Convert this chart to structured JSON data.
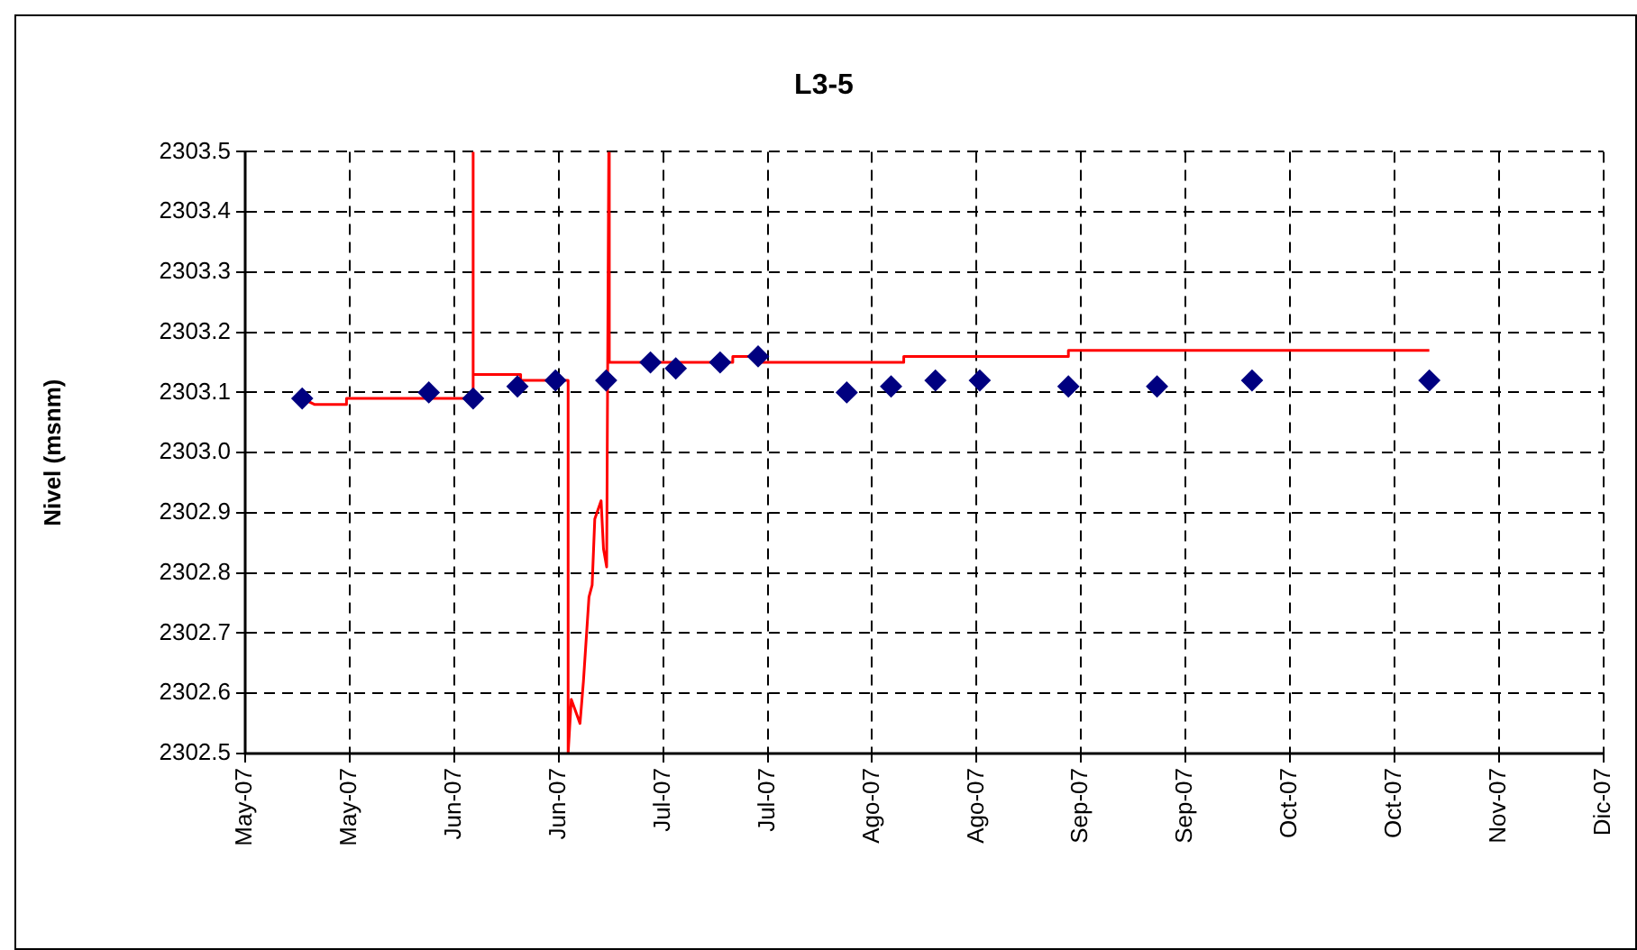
{
  "chart_data": {
    "type": "line",
    "title": "L3-5",
    "ylabel": "Nivel (msnm)",
    "xlim": [
      "2007-05-03",
      "2007-12-03T12:00"
    ],
    "xticks": [
      {
        "value": "2007-05-03",
        "label": "May-07"
      },
      {
        "value": "2007-05-19T12:00",
        "label": "May-07"
      },
      {
        "value": "2007-06-05",
        "label": "Jun-07"
      },
      {
        "value": "2007-06-21T12:00",
        "label": "Jun-07"
      },
      {
        "value": "2007-07-08",
        "label": "Jul-07"
      },
      {
        "value": "2007-07-24T12:00",
        "label": "Jul-07"
      },
      {
        "value": "2007-08-10",
        "label": "Ago-07"
      },
      {
        "value": "2007-08-26T12:00",
        "label": "Ago-07"
      },
      {
        "value": "2007-09-12",
        "label": "Sep-07"
      },
      {
        "value": "2007-09-28T12:00",
        "label": "Sep-07"
      },
      {
        "value": "2007-10-15",
        "label": "Oct-07"
      },
      {
        "value": "2007-10-31T12:00",
        "label": "Oct-07"
      },
      {
        "value": "2007-11-17",
        "label": "Nov-07"
      },
      {
        "value": "2007-12-03T12:00",
        "label": "Dic-07"
      }
    ],
    "ylim": [
      2302.5,
      2303.5
    ],
    "yticks": [
      2302.5,
      2302.6,
      2302.7,
      2302.8,
      2302.9,
      {
        "value": 2303,
        "label": "2303.0"
      },
      2303.1,
      2303.2,
      2303.3,
      2303.4,
      2303.5
    ],
    "grid": true,
    "legend": false,
    "series": [
      {
        "color": "#ff0000",
        "marker": "none",
        "line_style": "solid",
        "x": [
          "2007-05-12",
          "2007-05-14",
          "2007-05-19",
          "2007-05-19",
          "2007-05-30",
          "2007-06-08",
          "2007-06-08",
          "2007-06-08",
          "2007-06-15T12:00",
          "2007-06-15T12:00",
          "2007-06-23",
          "2007-06-23",
          "2007-06-23T12:00",
          "2007-06-24T21:00",
          "2007-06-25T10:00",
          "2007-06-26T07:00",
          "2007-06-26T19:00",
          "2007-06-27T05:00",
          "2007-06-28T05:00",
          "2007-06-28T14:00",
          "2007-06-29T02:00",
          "2007-06-29T10:00",
          "2007-06-29T12:00",
          "2007-07-19",
          "2007-07-19",
          "2007-07-23",
          "2007-07-23",
          "2007-08-15",
          "2007-08-15",
          "2007-09-10",
          "2007-09-10",
          "2007-11-06"
        ],
        "values": [
          2303.09,
          2303.08,
          2303.08,
          2303.09,
          2303.09,
          2303.09,
          2303.5,
          2303.13,
          2303.13,
          2303.12,
          2303.12,
          2302.5,
          2302.59,
          2302.55,
          2302.62,
          2302.76,
          2302.78,
          2302.89,
          2302.92,
          2302.84,
          2302.81,
          2303.5,
          2303.15,
          2303.15,
          2303.16,
          2303.16,
          2303.15,
          2303.15,
          2303.16,
          2303.16,
          2303.17,
          2303.17
        ]
      },
      {
        "type": "scatter",
        "color": "#000080",
        "marker": "diamond",
        "x": [
          "2007-05-12",
          "2007-06-01",
          "2007-06-08",
          "2007-06-15",
          "2007-06-21",
          "2007-06-29",
          "2007-07-06",
          "2007-07-10",
          "2007-07-17",
          "2007-07-23",
          "2007-08-06",
          "2007-08-13",
          "2007-08-20",
          "2007-08-27",
          "2007-09-10",
          "2007-09-24",
          "2007-10-09",
          "2007-11-06"
        ],
        "values": [
          2303.09,
          2303.1,
          2303.09,
          2303.11,
          2303.12,
          2303.12,
          2303.15,
          2303.14,
          2303.15,
          2303.16,
          2303.1,
          2303.11,
          2303.12,
          2303.12,
          2303.11,
          2303.11,
          2303.12,
          2303.12
        ]
      }
    ]
  }
}
